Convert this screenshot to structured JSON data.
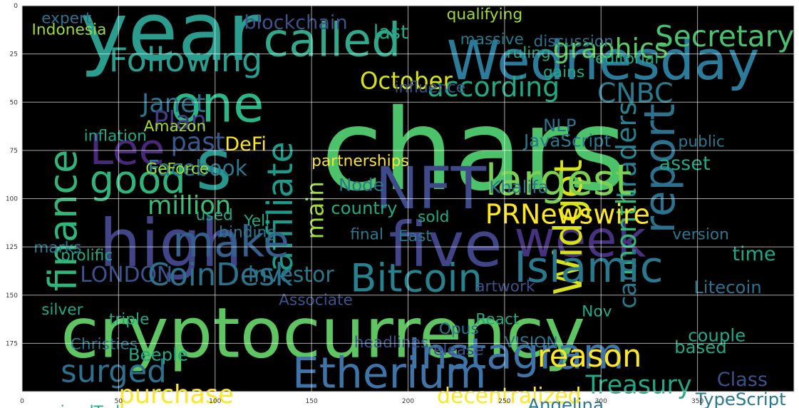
{
  "chart_data": {
    "type": "wordcloud",
    "x_ticks": [
      0,
      50,
      100,
      150,
      200,
      250,
      300,
      350
    ],
    "y_ticks": [
      0,
      25,
      50,
      75,
      100,
      125,
      150,
      175
    ],
    "xlim": [
      0,
      400
    ],
    "ylim": [
      0,
      200
    ],
    "y_inverted": true,
    "grid": true,
    "background_color": "#000000",
    "grid_color": "#ffffff",
    "words": [
      {
        "text": "chars",
        "x": 155,
        "y": 95,
        "size": 58,
        "color": "#4cc26a"
      },
      {
        "text": "cryptocurrency",
        "x": 20,
        "y": 182,
        "size": 36,
        "color": "#5fc462"
      },
      {
        "text": "year",
        "x": 30,
        "y": 28,
        "size": 42,
        "color": "#2a9d8f"
      },
      {
        "text": "called",
        "x": 125,
        "y": 26,
        "size": 24,
        "color": "#31a88a"
      },
      {
        "text": "Wednesday",
        "x": 220,
        "y": 38,
        "size": 28,
        "color": "#2b7b9b"
      },
      {
        "text": "one",
        "x": 77,
        "y": 60,
        "size": 26,
        "color": "#29b78a"
      },
      {
        "text": "s",
        "x": 90,
        "y": 95,
        "size": 36,
        "color": "#27968c"
      },
      {
        "text": "high",
        "x": 40,
        "y": 135,
        "size": 34,
        "color": "#414487"
      },
      {
        "text": "five",
        "x": 190,
        "y": 135,
        "size": 32,
        "color": "#414487"
      },
      {
        "text": "week",
        "x": 255,
        "y": 130,
        "size": 26,
        "color": "#46327e"
      },
      {
        "text": "NFT",
        "x": 183,
        "y": 105,
        "size": 30,
        "color": "#3e4a89"
      },
      {
        "text": "Lee",
        "x": 35,
        "y": 82,
        "size": 22,
        "color": "#482878"
      },
      {
        "text": "finance",
        "x": 28,
        "y": 148,
        "size": 20,
        "color": "#31b57b",
        "rotate": -90
      },
      {
        "text": "affiliate",
        "x": 140,
        "y": 138,
        "size": 18,
        "color": "#1f9a8a",
        "rotate": -90
      },
      {
        "text": "Widget",
        "x": 290,
        "y": 150,
        "size": 20,
        "color": "#d8e219",
        "rotate": -90
      },
      {
        "text": "report",
        "x": 338,
        "y": 118,
        "size": 22,
        "color": "#2c728e",
        "rotate": -90
      },
      {
        "text": "traders",
        "x": 318,
        "y": 100,
        "size": 14,
        "color": "#26828e",
        "rotate": -90
      },
      {
        "text": "month",
        "x": 318,
        "y": 140,
        "size": 14,
        "color": "#35b779",
        "rotate": -90
      },
      {
        "text": "card",
        "x": 318,
        "y": 157,
        "size": 12,
        "color": "#2a788e",
        "rotate": -90
      },
      {
        "text": "main",
        "x": 156,
        "y": 121,
        "size": 12,
        "color": "#a0da39",
        "rotate": -90
      },
      {
        "text": "largest",
        "x": 240,
        "y": 98,
        "size": 22,
        "color": "#7ad151"
      },
      {
        "text": "Following",
        "x": 45,
        "y": 34,
        "size": 17,
        "color": "#2a9d8f"
      },
      {
        "text": "graphics",
        "x": 275,
        "y": 27,
        "size": 14,
        "color": "#5ec962"
      },
      {
        "text": "Secretary",
        "x": 328,
        "y": 21,
        "size": 15,
        "color": "#4ac16d"
      },
      {
        "text": "according",
        "x": 210,
        "y": 47,
        "size": 14,
        "color": "#22a884"
      },
      {
        "text": "CNBC",
        "x": 298,
        "y": 50,
        "size": 14,
        "color": "#2a788e"
      },
      {
        "text": "October",
        "x": 175,
        "y": 43,
        "size": 12,
        "color": "#d8e219"
      },
      {
        "text": "Janet",
        "x": 62,
        "y": 55,
        "size": 13,
        "color": "#2c728e"
      },
      {
        "text": "Plan",
        "x": 68,
        "y": 64,
        "size": 13,
        "color": "#443983"
      },
      {
        "text": "past",
        "x": 77,
        "y": 75,
        "size": 13,
        "color": "#38588c"
      },
      {
        "text": "DeFi",
        "x": 105,
        "y": 75,
        "size": 10,
        "color": "#fde725"
      },
      {
        "text": "good",
        "x": 35,
        "y": 97,
        "size": 20,
        "color": "#2fb47c"
      },
      {
        "text": "million",
        "x": 65,
        "y": 108,
        "size": 13,
        "color": "#3bbb75"
      },
      {
        "text": "Facebook",
        "x": 65,
        "y": 88,
        "size": 11,
        "color": "#2a788e"
      },
      {
        "text": "make",
        "x": 78,
        "y": 130,
        "size": 22,
        "color": "#355f8d"
      },
      {
        "text": "Bitcoin",
        "x": 170,
        "y": 148,
        "size": 20,
        "color": "#26828e"
      },
      {
        "text": "Islamic",
        "x": 255,
        "y": 143,
        "size": 22,
        "color": "#2a788e"
      },
      {
        "text": "PRNewswire",
        "x": 240,
        "y": 113,
        "size": 14,
        "color": "#fde725"
      },
      {
        "text": "LONDON",
        "x": 30,
        "y": 143,
        "size": 11,
        "color": "#3b528b"
      },
      {
        "text": "CoinDesk",
        "x": 65,
        "y": 145,
        "size": 16,
        "color": "#2c728e"
      },
      {
        "text": "investor",
        "x": 117,
        "y": 143,
        "size": 11,
        "color": "#2a788e"
      },
      {
        "text": "Instagram",
        "x": 200,
        "y": 188,
        "size": 22,
        "color": "#3e74a8"
      },
      {
        "text": "Etherium",
        "x": 140,
        "y": 198,
        "size": 22,
        "color": "#3e74a8"
      },
      {
        "text": "surged",
        "x": 20,
        "y": 195,
        "size": 16,
        "color": "#2c728e"
      },
      {
        "text": "reason",
        "x": 267,
        "y": 187,
        "size": 16,
        "color": "#fde725"
      },
      {
        "text": "purchase",
        "x": 50,
        "y": 206,
        "size": 13,
        "color": "#fde725"
      },
      {
        "text": "decentralized",
        "x": 215,
        "y": 206,
        "size": 11,
        "color": "#fde725"
      },
      {
        "text": "Treasury",
        "x": 292,
        "y": 201,
        "size": 13,
        "color": "#22a884"
      },
      {
        "text": "Angelina",
        "x": 262,
        "y": 210,
        "size": 9,
        "color": "#2a788e"
      },
      {
        "text": "Class",
        "x": 360,
        "y": 197,
        "size": 10,
        "color": "#3b528b"
      },
      {
        "text": "TypeScript",
        "x": 349,
        "y": 207,
        "size": 9,
        "color": "#2a788e"
      },
      {
        "text": "blockchain",
        "x": 115,
        "y": 12,
        "size": 10,
        "color": "#3b528b"
      },
      {
        "text": "last",
        "x": 182,
        "y": 17,
        "size": 10,
        "color": "#22a884"
      },
      {
        "text": "qualifying",
        "x": 220,
        "y": 7,
        "size": 8,
        "color": "#a0da39"
      },
      {
        "text": "Indonesia",
        "x": 5,
        "y": 15,
        "size": 8,
        "color": "#a0da39"
      },
      {
        "text": "expert",
        "x": 10,
        "y": 9,
        "size": 8,
        "color": "#2c728e"
      },
      {
        "text": "Amazon",
        "x": 63,
        "y": 65,
        "size": 8,
        "color": "#a0da39"
      },
      {
        "text": "JavaScript",
        "x": 260,
        "y": 73,
        "size": 9,
        "color": "#2a788e"
      },
      {
        "text": "NLP",
        "x": 270,
        "y": 65,
        "size": 9,
        "color": "#2c728e"
      },
      {
        "text": "Khalifa",
        "x": 242,
        "y": 97,
        "size": 9,
        "color": "#2a788e"
      },
      {
        "text": "Node",
        "x": 164,
        "y": 96,
        "size": 9,
        "color": "#2a788e"
      },
      {
        "text": "country",
        "x": 160,
        "y": 108,
        "size": 9,
        "color": "#22a884"
      },
      {
        "text": "Litecoin",
        "x": 348,
        "y": 149,
        "size": 9,
        "color": "#2c728e"
      },
      {
        "text": "Beeple",
        "x": 55,
        "y": 184,
        "size": 9,
        "color": "#22a884"
      },
      {
        "text": "Christies",
        "x": 25,
        "y": 178,
        "size": 8,
        "color": "#2a788e"
      },
      {
        "text": "partnerships",
        "x": 150,
        "y": 83,
        "size": 8,
        "color": "#fde725"
      },
      {
        "text": "asset",
        "x": 330,
        "y": 85,
        "size": 10,
        "color": "#22a884"
      },
      {
        "text": "time",
        "x": 368,
        "y": 132,
        "size": 10,
        "color": "#22a884"
      },
      {
        "text": "couple",
        "x": 345,
        "y": 174,
        "size": 9,
        "color": "#22a884"
      },
      {
        "text": "based",
        "x": 338,
        "y": 180,
        "size": 9,
        "color": "#22a884"
      },
      {
        "text": "VISION",
        "x": 250,
        "y": 177,
        "size": 8,
        "color": "#2a788e"
      },
      {
        "text": "artwork",
        "x": 235,
        "y": 148,
        "size": 8,
        "color": "#3b528b"
      },
      {
        "text": "React",
        "x": 235,
        "y": 165,
        "size": 8,
        "color": "#22a884"
      },
      {
        "text": "version",
        "x": 337,
        "y": 121,
        "size": 8,
        "color": "#2a788e"
      },
      {
        "text": "public",
        "x": 340,
        "y": 73,
        "size": 8,
        "color": "#2a788e"
      },
      {
        "text": "GeForce",
        "x": 64,
        "y": 87,
        "size": 8,
        "color": "#a0da39"
      },
      {
        "text": "inflation",
        "x": 32,
        "y": 70,
        "size": 8,
        "color": "#22a884"
      },
      {
        "text": "massive",
        "x": 227,
        "y": 20,
        "size": 8,
        "color": "#2a788e"
      },
      {
        "text": "discussion",
        "x": 265,
        "y": 21,
        "size": 8,
        "color": "#2c728e"
      },
      {
        "text": "editorial",
        "x": 297,
        "y": 30,
        "size": 8,
        "color": "#22a884"
      },
      {
        "text": "influence",
        "x": 193,
        "y": 45,
        "size": 8,
        "color": "#3b528b"
      },
      {
        "text": "ruling",
        "x": 251,
        "y": 27,
        "size": 8,
        "color": "#22a884"
      },
      {
        "text": "gains",
        "x": 270,
        "y": 37,
        "size": 8,
        "color": "#22a884"
      },
      {
        "text": "sold",
        "x": 205,
        "y": 112,
        "size": 8,
        "color": "#22a884"
      },
      {
        "text": "final",
        "x": 170,
        "y": 121,
        "size": 8,
        "color": "#2a788e"
      },
      {
        "text": "East",
        "x": 195,
        "y": 122,
        "size": 8,
        "color": "#2a788e"
      },
      {
        "text": "Nov",
        "x": 290,
        "y": 161,
        "size": 8,
        "color": "#22a884"
      },
      {
        "text": "Associate",
        "x": 133,
        "y": 155,
        "size": 8,
        "color": "#3b528b"
      },
      {
        "text": "silver",
        "x": 10,
        "y": 160,
        "size": 8,
        "color": "#22a884"
      },
      {
        "text": "triple",
        "x": 45,
        "y": 165,
        "size": 8,
        "color": "#22a884"
      },
      {
        "text": "prolific",
        "x": 20,
        "y": 132,
        "size": 8,
        "color": "#22a884"
      },
      {
        "text": "marks",
        "x": 6,
        "y": 128,
        "size": 8,
        "color": "#2a788e"
      },
      {
        "text": "binding",
        "x": 102,
        "y": 120,
        "size": 8,
        "color": "#2a788e"
      },
      {
        "text": "used",
        "x": 90,
        "y": 111,
        "size": 8,
        "color": "#22a884"
      },
      {
        "text": "Yell",
        "x": 115,
        "y": 114,
        "size": 8,
        "color": "#22a884"
      },
      {
        "text": "minedToday",
        "x": 12,
        "y": 213,
        "size": 8,
        "color": "#22a884"
      },
      {
        "text": "headlines",
        "x": 172,
        "y": 177,
        "size": 8,
        "color": "#3b528b"
      },
      {
        "text": "release",
        "x": 210,
        "y": 181,
        "size": 8,
        "color": "#3b528b"
      },
      {
        "text": "Opus",
        "x": 216,
        "y": 170,
        "size": 8,
        "color": "#2a788e"
      }
    ]
  }
}
